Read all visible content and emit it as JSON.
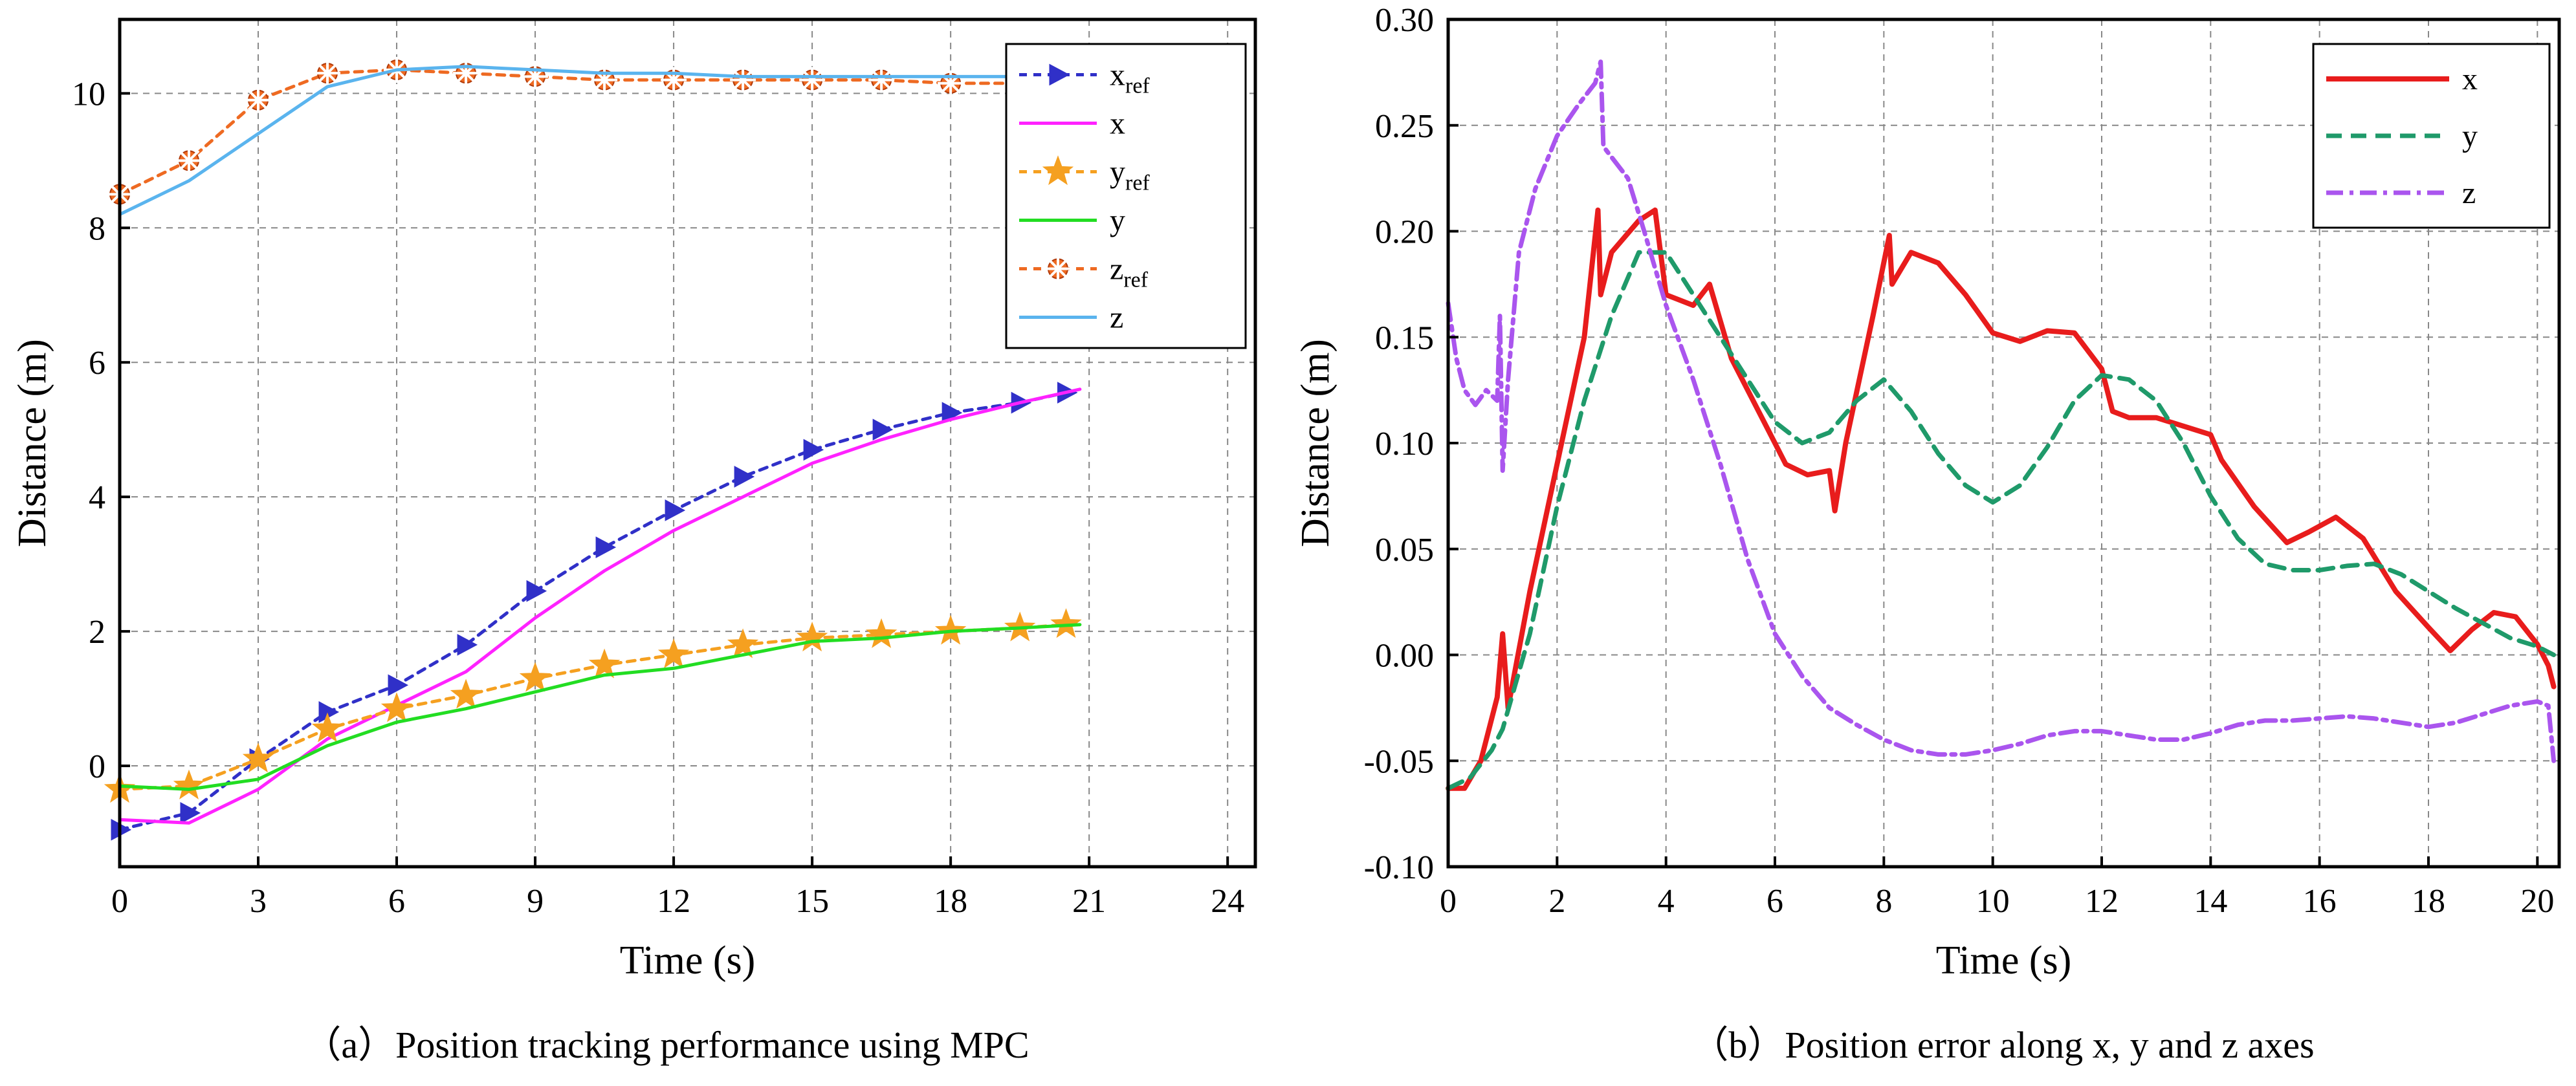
{
  "chart_data": [
    {
      "type": "line",
      "caption": "（a）Position tracking performance using MPC",
      "xlabel": "Time (s)",
      "ylabel": "Distance (m)",
      "xlim": [
        0,
        24.6
      ],
      "ylim": [
        -1.5,
        11.1
      ],
      "xticks": [
        0,
        3,
        6,
        9,
        12,
        15,
        18,
        21,
        24
      ],
      "yticks": [
        0,
        2,
        4,
        6,
        8,
        10
      ],
      "grid": true,
      "legend_position": "top-right",
      "series": [
        {
          "name": "x",
          "subscript": "ref",
          "color": "#3030c8",
          "dash": "12 10",
          "marker": "triangle-right",
          "x": [
            0,
            1.5,
            3,
            4.5,
            6,
            7.5,
            9,
            10.5,
            12,
            13.5,
            15,
            16.5,
            18,
            19.5,
            20.5
          ],
          "y": [
            -0.95,
            -0.7,
            0.1,
            0.8,
            1.2,
            1.8,
            2.6,
            3.25,
            3.8,
            4.3,
            4.7,
            5.0,
            5.25,
            5.4,
            5.55
          ]
        },
        {
          "name": "x",
          "subscript": "",
          "color": "#ff22ff",
          "dash": "",
          "marker": "none",
          "x": [
            0,
            1.5,
            3,
            4.5,
            6,
            7.5,
            9,
            10.5,
            12,
            13.5,
            15,
            16.5,
            18,
            19.5,
            20.8
          ],
          "y": [
            -0.8,
            -0.85,
            -0.35,
            0.4,
            0.9,
            1.4,
            2.2,
            2.9,
            3.5,
            4.0,
            4.5,
            4.85,
            5.15,
            5.4,
            5.6
          ]
        },
        {
          "name": "y",
          "subscript": "ref",
          "color": "#f5a020",
          "dash": "12 10",
          "marker": "star",
          "x": [
            0,
            1.5,
            3,
            4.5,
            6,
            7.5,
            9,
            10.5,
            12,
            13.5,
            15,
            16.5,
            18,
            19.5,
            20.5
          ],
          "y": [
            -0.35,
            -0.3,
            0.1,
            0.55,
            0.85,
            1.05,
            1.3,
            1.5,
            1.65,
            1.8,
            1.9,
            1.95,
            2.0,
            2.05,
            2.1
          ]
        },
        {
          "name": "y",
          "subscript": "",
          "color": "#22dd22",
          "dash": "",
          "marker": "none",
          "x": [
            0,
            1.5,
            3,
            4.5,
            6,
            7.5,
            9,
            10.5,
            12,
            13.5,
            15,
            16.5,
            18,
            19.5,
            20.8
          ],
          "y": [
            -0.3,
            -0.35,
            -0.2,
            0.3,
            0.65,
            0.85,
            1.1,
            1.35,
            1.45,
            1.65,
            1.85,
            1.9,
            2.0,
            2.05,
            2.1
          ]
        },
        {
          "name": "z",
          "subscript": "ref",
          "color": "#ee6a22",
          "dash": "12 10",
          "marker": "star-cross",
          "x": [
            0,
            1.5,
            3,
            4.5,
            6,
            7.5,
            9,
            10.5,
            12,
            13.5,
            15,
            16.5,
            18,
            19.5,
            20.5
          ],
          "y": [
            8.5,
            9.0,
            9.9,
            10.3,
            10.35,
            10.3,
            10.25,
            10.2,
            10.2,
            10.2,
            10.2,
            10.2,
            10.15,
            10.15,
            10.15
          ]
        },
        {
          "name": "z",
          "subscript": "",
          "color": "#5ab4ee",
          "dash": "",
          "marker": "none",
          "x": [
            0,
            1.5,
            3,
            4.5,
            6,
            7.5,
            9,
            10.5,
            12,
            13.5,
            15,
            16.5,
            18,
            19.5,
            20.8
          ],
          "y": [
            8.2,
            8.7,
            9.4,
            10.1,
            10.35,
            10.4,
            10.35,
            10.3,
            10.3,
            10.25,
            10.25,
            10.25,
            10.25,
            10.25,
            10.25
          ]
        }
      ]
    },
    {
      "type": "line",
      "caption": "（b）Position error along x, y and z axes",
      "xlabel": "Time (s)",
      "ylabel": "Distance (m)",
      "xlim": [
        0,
        20.4
      ],
      "ylim": [
        -0.1,
        0.3
      ],
      "xticks": [
        0,
        2,
        4,
        6,
        8,
        10,
        12,
        14,
        16,
        18,
        20
      ],
      "yticks": [
        -0.1,
        -0.05,
        0.0,
        0.05,
        0.1,
        0.15,
        0.2,
        0.25,
        0.3
      ],
      "ytick_labels": [
        "-0.10",
        "-0.05",
        "0.00",
        "0.05",
        "0.10",
        "0.15",
        "0.20",
        "0.25",
        "0.30"
      ],
      "grid": true,
      "legend_position": "top-right",
      "series": [
        {
          "name": "x",
          "color": "#e81c1c",
          "dash": "",
          "width": 8,
          "x": [
            0,
            0.3,
            0.6,
            0.9,
            1.0,
            1.1,
            1.5,
            2.0,
            2.5,
            2.75,
            2.8,
            3.0,
            3.5,
            3.8,
            4.0,
            4.5,
            4.8,
            5.2,
            5.8,
            6.2,
            6.6,
            7.0,
            7.1,
            7.3,
            7.8,
            8.1,
            8.15,
            8.5,
            9.0,
            9.5,
            10.0,
            10.5,
            11.0,
            11.5,
            12.0,
            12.2,
            12.5,
            13.0,
            13.5,
            14.0,
            14.2,
            14.8,
            15.4,
            15.8,
            16.3,
            16.8,
            17.4,
            18.0,
            18.4,
            18.8,
            19.2,
            19.6,
            20.0,
            20.2,
            20.3
          ],
          "y": [
            -0.063,
            -0.063,
            -0.05,
            -0.02,
            0.01,
            -0.025,
            0.03,
            0.09,
            0.15,
            0.21,
            0.17,
            0.19,
            0.205,
            0.21,
            0.17,
            0.165,
            0.175,
            0.14,
            0.11,
            0.09,
            0.085,
            0.087,
            0.068,
            0.1,
            0.16,
            0.198,
            0.175,
            0.19,
            0.185,
            0.17,
            0.152,
            0.148,
            0.153,
            0.152,
            0.135,
            0.115,
            0.112,
            0.112,
            0.108,
            0.104,
            0.092,
            0.07,
            0.053,
            0.058,
            0.065,
            0.055,
            0.03,
            0.013,
            0.002,
            0.012,
            0.02,
            0.018,
            0.005,
            -0.005,
            -0.015
          ]
        },
        {
          "name": "y",
          "color": "#1f9a6a",
          "dash": "24 14",
          "width": 7,
          "x": [
            0,
            0.4,
            0.8,
            1.0,
            1.5,
            2.0,
            2.5,
            3.0,
            3.5,
            4.0,
            4.5,
            5.0,
            5.5,
            6.0,
            6.5,
            7.0,
            7.5,
            8.0,
            8.5,
            9.0,
            9.5,
            10.0,
            10.5,
            11.0,
            11.5,
            12.0,
            12.5,
            13.0,
            13.5,
            14.0,
            14.5,
            15.0,
            15.5,
            16.0,
            16.5,
            17.0,
            17.5,
            18.0,
            18.5,
            19.0,
            19.5,
            20.0,
            20.3
          ],
          "y": [
            -0.063,
            -0.058,
            -0.045,
            -0.035,
            0.01,
            0.07,
            0.12,
            0.16,
            0.19,
            0.19,
            0.17,
            0.15,
            0.13,
            0.11,
            0.1,
            0.105,
            0.12,
            0.13,
            0.115,
            0.095,
            0.08,
            0.072,
            0.08,
            0.098,
            0.12,
            0.132,
            0.13,
            0.12,
            0.1,
            0.075,
            0.055,
            0.043,
            0.04,
            0.04,
            0.042,
            0.043,
            0.038,
            0.03,
            0.022,
            0.015,
            0.008,
            0.004,
            0.0
          ]
        },
        {
          "name": "z",
          "color": "#aa55ee",
          "dash": "26 10 6 10",
          "width": 7,
          "x": [
            0,
            0.15,
            0.3,
            0.5,
            0.7,
            0.9,
            0.95,
            1.0,
            1.1,
            1.3,
            1.6,
            2.0,
            2.4,
            2.7,
            2.8,
            2.85,
            3.0,
            3.3,
            3.6,
            4.0,
            4.5,
            5.0,
            5.5,
            6.0,
            6.5,
            7.0,
            7.5,
            8.0,
            8.5,
            9.0,
            9.5,
            10.0,
            10.5,
            11.0,
            11.5,
            12.0,
            12.5,
            13.0,
            13.5,
            14.0,
            14.5,
            15.0,
            15.5,
            16.0,
            16.5,
            17.0,
            17.5,
            18.0,
            18.5,
            19.0,
            19.5,
            20.0,
            20.2,
            20.3
          ],
          "y": [
            0.166,
            0.14,
            0.125,
            0.118,
            0.125,
            0.12,
            0.16,
            0.087,
            0.13,
            0.19,
            0.22,
            0.245,
            0.26,
            0.27,
            0.28,
            0.24,
            0.235,
            0.225,
            0.2,
            0.165,
            0.13,
            0.09,
            0.045,
            0.01,
            -0.01,
            -0.025,
            -0.033,
            -0.04,
            -0.045,
            -0.047,
            -0.047,
            -0.045,
            -0.042,
            -0.038,
            -0.036,
            -0.036,
            -0.038,
            -0.04,
            -0.04,
            -0.037,
            -0.033,
            -0.031,
            -0.031,
            -0.03,
            -0.029,
            -0.03,
            -0.032,
            -0.034,
            -0.032,
            -0.028,
            -0.024,
            -0.022,
            -0.024,
            -0.05
          ]
        }
      ]
    }
  ]
}
